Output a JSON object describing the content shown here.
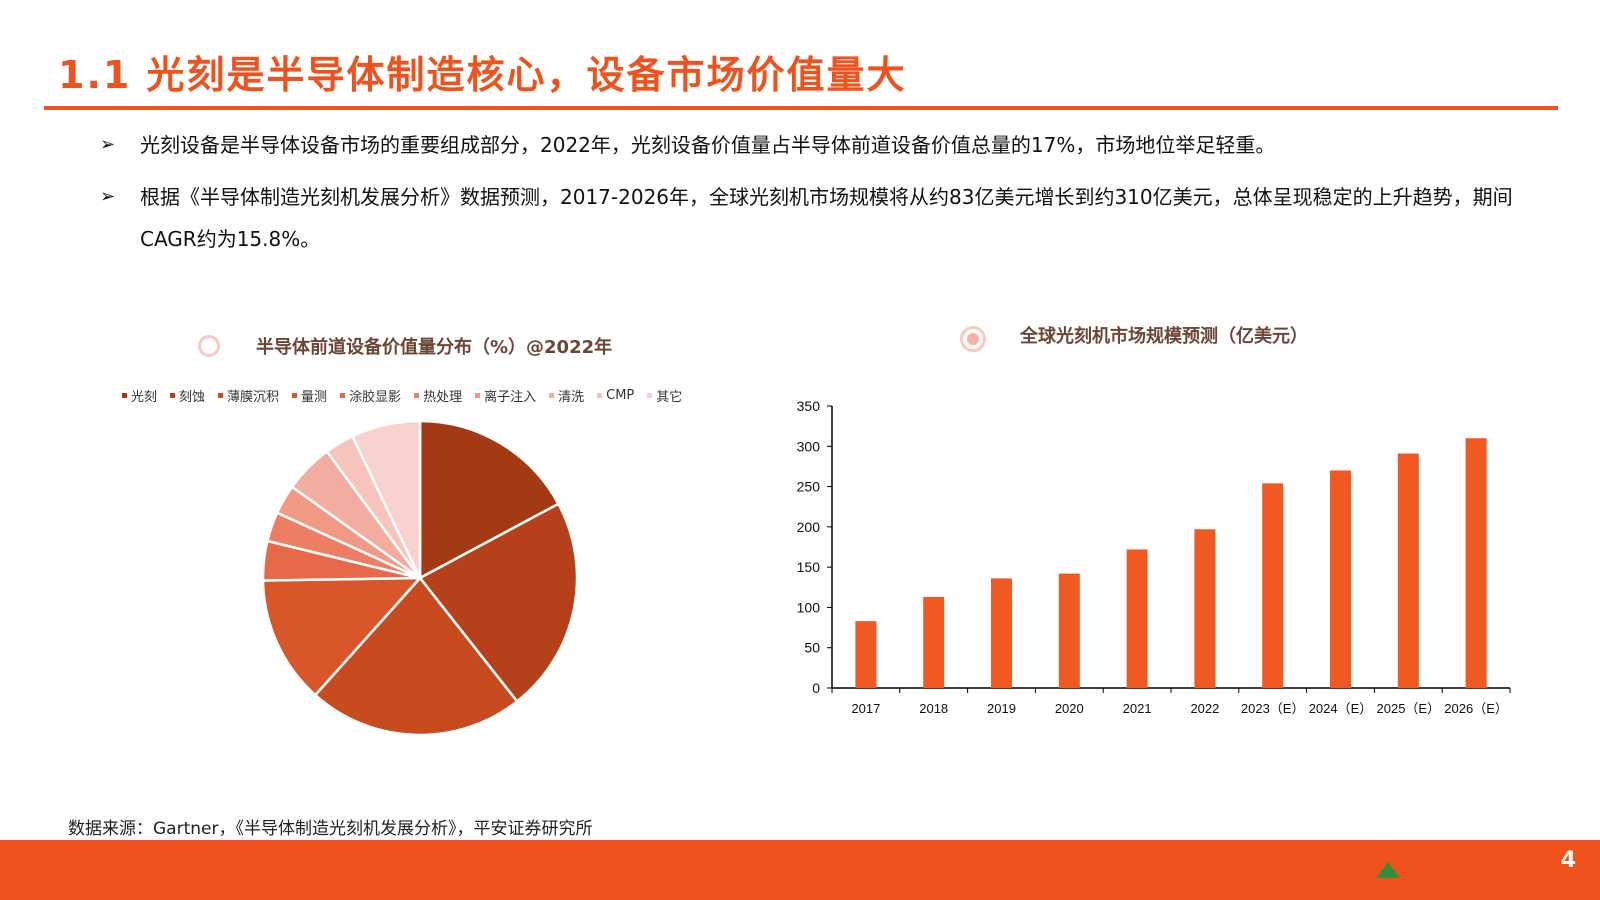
{
  "header": {
    "title": "1.1 光刻是半导体制造核心，设备市场价值量大"
  },
  "bullets": [
    "光刻设备是半导体设备市场的重要组成部分，2022年，光刻设备价值量占半导体前道设备价值总量的17%，市场地位举足轻重。",
    "根据《半导体制造光刻机发展分析》数据预测，2017-2026年，全球光刻机市场规模将从约83亿美元增长到约310亿美元，总体呈现稳定的上升趋势，期间CAGR约为15.8%。"
  ],
  "bullet_marker": "➢",
  "icons": {
    "pie_title_icon": "ring-icon",
    "bar_title_icon": "ring-dot-icon",
    "logo": "triangle-logo-icon"
  },
  "colors": {
    "accent": "#f0521d",
    "bar": "#f05a22",
    "title_text": "#6b4636"
  },
  "chart_data": [
    {
      "type": "pie",
      "title": "半导体前道设备价值量分布（%）@2022年",
      "legend_position": "top",
      "categories": [
        "光刻",
        "刻蚀",
        "薄膜沉积",
        "量测",
        "涂胶显影",
        "热处理",
        "离子注入",
        "清洗",
        "CMP",
        "其它"
      ],
      "values": [
        17,
        22,
        22,
        13,
        4,
        3,
        3,
        5,
        3,
        7
      ],
      "colors": [
        "#a43a14",
        "#b5401a",
        "#c84b1f",
        "#d9552a",
        "#e8694a",
        "#ee7e63",
        "#f09a85",
        "#f2ada0",
        "#f6c4bc",
        "#f9d2cd"
      ]
    },
    {
      "type": "bar",
      "title": "全球光刻机市场规模预测（亿美元）",
      "categories": [
        "2017",
        "2018",
        "2019",
        "2020",
        "2021",
        "2022",
        "2023（E）",
        "2024（E）",
        "2025（E）",
        "2026（E）"
      ],
      "values": [
        83,
        113,
        136,
        142,
        172,
        197,
        254,
        270,
        291,
        310
      ],
      "ylim": [
        0,
        350
      ],
      "yticks": [
        0,
        50,
        100,
        150,
        200,
        250,
        300,
        350
      ],
      "grid": false,
      "color": "#f05a22"
    }
  ],
  "source": "数据来源：Gartner，《半导体制造光刻机发展分析》，平安证券研究所",
  "page_number": "4"
}
